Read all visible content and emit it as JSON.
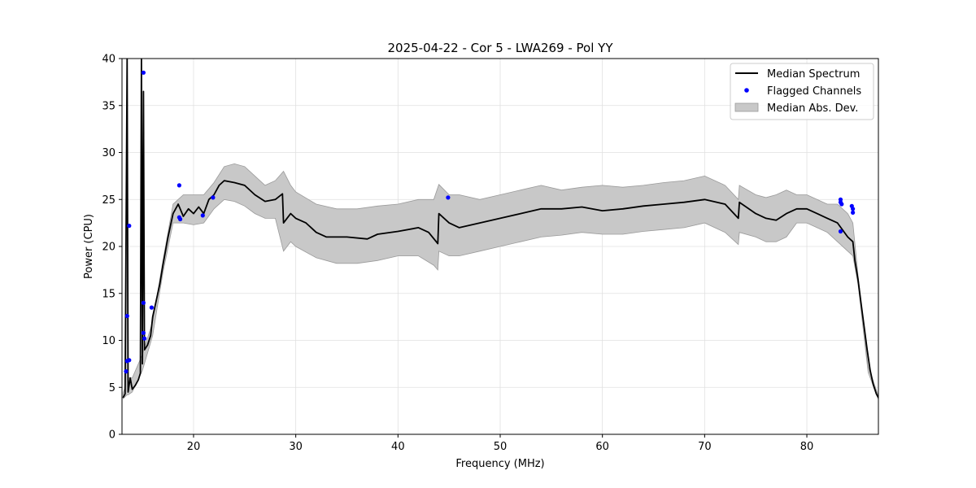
{
  "chart_data": {
    "type": "line",
    "title": "2025-04-22 - Cor 5 - LWA269 - Pol YY",
    "xlabel": "Frequency (MHz)",
    "ylabel": "Power (CPU)",
    "xlim": [
      13,
      87
    ],
    "ylim": [
      0,
      40
    ],
    "x_ticks": [
      20,
      30,
      40,
      50,
      60,
      70,
      80
    ],
    "y_ticks": [
      0,
      5,
      10,
      15,
      20,
      25,
      30,
      35,
      40
    ],
    "grid": true,
    "legend_position": "top-right",
    "colors": {
      "median": "#000000",
      "flagged": "#0000ff",
      "mad_fill": "#c8c8c8",
      "mad_edge": "#9a9a9a"
    },
    "series": [
      {
        "name": "Median Spectrum",
        "kind": "line",
        "points": [
          [
            13.1,
            3.9
          ],
          [
            13.3,
            4.3
          ],
          [
            13.5,
            40
          ],
          [
            13.6,
            4.5
          ],
          [
            13.8,
            6.0
          ],
          [
            14.0,
            4.8
          ],
          [
            14.3,
            5.2
          ],
          [
            14.6,
            5.8
          ],
          [
            14.8,
            6.5
          ],
          [
            14.9,
            40
          ],
          [
            15.0,
            7.5
          ],
          [
            15.1,
            36.5
          ],
          [
            15.2,
            9.0
          ],
          [
            15.5,
            9.5
          ],
          [
            15.8,
            10.5
          ],
          [
            16.0,
            12.5
          ],
          [
            16.3,
            14.0
          ],
          [
            16.7,
            16.0
          ],
          [
            17.0,
            18.0
          ],
          [
            17.5,
            21.0
          ],
          [
            18.0,
            23.5
          ],
          [
            18.5,
            24.5
          ],
          [
            19.0,
            23.2
          ],
          [
            19.5,
            24.0
          ],
          [
            20.0,
            23.5
          ],
          [
            20.5,
            24.2
          ],
          [
            21.0,
            23.5
          ],
          [
            21.5,
            25.0
          ],
          [
            22.0,
            25.5
          ],
          [
            22.5,
            26.5
          ],
          [
            23.0,
            27.0
          ],
          [
            24.0,
            26.8
          ],
          [
            25.0,
            26.5
          ],
          [
            26.0,
            25.5
          ],
          [
            27.0,
            24.8
          ],
          [
            28.0,
            25.0
          ],
          [
            28.7,
            25.6
          ],
          [
            28.8,
            22.5
          ],
          [
            29.5,
            23.5
          ],
          [
            30.0,
            23.0
          ],
          [
            31.0,
            22.5
          ],
          [
            32.0,
            21.5
          ],
          [
            33.0,
            21.0
          ],
          [
            35.0,
            21.0
          ],
          [
            37.0,
            20.8
          ],
          [
            38.0,
            21.3
          ],
          [
            40.0,
            21.6
          ],
          [
            42.0,
            22.0
          ],
          [
            43.0,
            21.5
          ],
          [
            43.9,
            20.3
          ],
          [
            44.0,
            23.5
          ],
          [
            45.0,
            22.5
          ],
          [
            46.0,
            22.0
          ],
          [
            48.0,
            22.5
          ],
          [
            50.0,
            23.0
          ],
          [
            52.0,
            23.5
          ],
          [
            54.0,
            24.0
          ],
          [
            56.0,
            24.0
          ],
          [
            58.0,
            24.2
          ],
          [
            60.0,
            23.8
          ],
          [
            62.0,
            24.0
          ],
          [
            64.0,
            24.3
          ],
          [
            66.0,
            24.5
          ],
          [
            68.0,
            24.7
          ],
          [
            70.0,
            25.0
          ],
          [
            72.0,
            24.5
          ],
          [
            73.3,
            23.0
          ],
          [
            73.4,
            24.7
          ],
          [
            75.0,
            23.5
          ],
          [
            76.0,
            23.0
          ],
          [
            77.0,
            22.8
          ],
          [
            78.0,
            23.5
          ],
          [
            79.0,
            24.0
          ],
          [
            80.0,
            24.0
          ],
          [
            81.0,
            23.5
          ],
          [
            82.0,
            23.0
          ],
          [
            83.0,
            22.5
          ],
          [
            84.0,
            21.0
          ],
          [
            84.5,
            20.5
          ],
          [
            84.7,
            18.5
          ],
          [
            85.0,
            16.5
          ],
          [
            85.3,
            14.0
          ],
          [
            85.6,
            11.5
          ],
          [
            85.9,
            9.0
          ],
          [
            86.2,
            6.8
          ],
          [
            86.5,
            5.3
          ],
          [
            86.8,
            4.3
          ],
          [
            87.0,
            3.9
          ]
        ]
      },
      {
        "name": "Flagged Channels",
        "kind": "scatter",
        "points": [
          [
            13.4,
            6.7
          ],
          [
            13.5,
            7.8
          ],
          [
            13.5,
            12.6
          ],
          [
            13.7,
            22.2
          ],
          [
            13.7,
            7.9
          ],
          [
            15.1,
            38.5
          ],
          [
            15.1,
            14.0
          ],
          [
            15.1,
            10.8
          ],
          [
            15.2,
            10.2
          ],
          [
            15.9,
            13.5
          ],
          [
            18.6,
            26.5
          ],
          [
            18.6,
            23.1
          ],
          [
            18.7,
            22.9
          ],
          [
            20.9,
            23.3
          ],
          [
            21.9,
            25.2
          ],
          [
            44.9,
            25.2
          ],
          [
            83.3,
            25.0
          ],
          [
            83.3,
            24.7
          ],
          [
            83.4,
            24.5
          ],
          [
            83.3,
            21.6
          ],
          [
            84.4,
            24.3
          ],
          [
            84.5,
            24.0
          ],
          [
            84.5,
            23.6
          ]
        ]
      },
      {
        "name": "Median Abs. Dev.",
        "kind": "band",
        "upper": [
          [
            13.1,
            4.4
          ],
          [
            13.3,
            5.0
          ],
          [
            13.5,
            34.0
          ],
          [
            13.6,
            6.0
          ],
          [
            14.0,
            6.0
          ],
          [
            15.0,
            8.5
          ],
          [
            16.0,
            12.0
          ],
          [
            17.0,
            18.5
          ],
          [
            18.0,
            24.5
          ],
          [
            19.0,
            25.5
          ],
          [
            20.0,
            25.5
          ],
          [
            21.0,
            25.5
          ],
          [
            22.0,
            26.8
          ],
          [
            23.0,
            28.5
          ],
          [
            24.0,
            28.8
          ],
          [
            25.0,
            28.5
          ],
          [
            26.0,
            27.5
          ],
          [
            27.0,
            26.5
          ],
          [
            28.0,
            27.0
          ],
          [
            28.8,
            28.0
          ],
          [
            29.5,
            26.5
          ],
          [
            30.0,
            25.8
          ],
          [
            32.0,
            24.5
          ],
          [
            34.0,
            24.0
          ],
          [
            36.0,
            24.0
          ],
          [
            38.0,
            24.3
          ],
          [
            40.0,
            24.5
          ],
          [
            42.0,
            25.0
          ],
          [
            43.5,
            25.0
          ],
          [
            44.0,
            26.6
          ],
          [
            45.0,
            25.5
          ],
          [
            46.0,
            25.5
          ],
          [
            48.0,
            25.0
          ],
          [
            50.0,
            25.5
          ],
          [
            52.0,
            26.0
          ],
          [
            54.0,
            26.5
          ],
          [
            56.0,
            26.0
          ],
          [
            58.0,
            26.3
          ],
          [
            60.0,
            26.5
          ],
          [
            62.0,
            26.3
          ],
          [
            64.0,
            26.5
          ],
          [
            66.0,
            26.8
          ],
          [
            68.0,
            27.0
          ],
          [
            70.0,
            27.5
          ],
          [
            72.0,
            26.5
          ],
          [
            73.3,
            25.0
          ],
          [
            73.4,
            26.5
          ],
          [
            75.0,
            25.5
          ],
          [
            76.0,
            25.2
          ],
          [
            77.0,
            25.5
          ],
          [
            78.0,
            26.0
          ],
          [
            79.0,
            25.5
          ],
          [
            80.0,
            25.5
          ],
          [
            81.0,
            25.0
          ],
          [
            82.0,
            24.5
          ],
          [
            83.0,
            24.5
          ],
          [
            84.0,
            23.5
          ],
          [
            84.5,
            22.5
          ],
          [
            85.0,
            17.0
          ],
          [
            86.0,
            7.2
          ],
          [
            87.0,
            4.1
          ]
        ],
        "lower": [
          [
            13.1,
            3.8
          ],
          [
            13.3,
            4.0
          ],
          [
            13.5,
            4.2
          ],
          [
            13.6,
            4.2
          ],
          [
            14.0,
            4.5
          ],
          [
            15.0,
            6.8
          ],
          [
            16.0,
            10.5
          ],
          [
            17.0,
            17.2
          ],
          [
            18.0,
            22.5
          ],
          [
            19.0,
            22.5
          ],
          [
            20.0,
            22.3
          ],
          [
            21.0,
            22.5
          ],
          [
            22.0,
            24.0
          ],
          [
            23.0,
            25.0
          ],
          [
            24.0,
            24.8
          ],
          [
            25.0,
            24.3
          ],
          [
            26.0,
            23.5
          ],
          [
            27.0,
            23.0
          ],
          [
            28.0,
            23.0
          ],
          [
            28.8,
            19.5
          ],
          [
            29.5,
            20.5
          ],
          [
            30.0,
            20.0
          ],
          [
            32.0,
            18.8
          ],
          [
            34.0,
            18.2
          ],
          [
            36.0,
            18.2
          ],
          [
            38.0,
            18.5
          ],
          [
            40.0,
            19.0
          ],
          [
            42.0,
            19.0
          ],
          [
            43.5,
            18.0
          ],
          [
            43.9,
            17.5
          ],
          [
            44.0,
            19.5
          ],
          [
            45.0,
            19.0
          ],
          [
            46.0,
            19.0
          ],
          [
            48.0,
            19.5
          ],
          [
            50.0,
            20.0
          ],
          [
            52.0,
            20.5
          ],
          [
            54.0,
            21.0
          ],
          [
            56.0,
            21.2
          ],
          [
            58.0,
            21.5
          ],
          [
            60.0,
            21.3
          ],
          [
            62.0,
            21.3
          ],
          [
            64.0,
            21.6
          ],
          [
            66.0,
            21.8
          ],
          [
            68.0,
            22.0
          ],
          [
            70.0,
            22.5
          ],
          [
            72.0,
            21.5
          ],
          [
            73.3,
            20.2
          ],
          [
            73.4,
            21.5
          ],
          [
            75.0,
            21.0
          ],
          [
            76.0,
            20.5
          ],
          [
            77.0,
            20.5
          ],
          [
            78.0,
            21.0
          ],
          [
            79.0,
            22.5
          ],
          [
            80.0,
            22.5
          ],
          [
            81.0,
            22.0
          ],
          [
            82.0,
            21.5
          ],
          [
            83.0,
            20.5
          ],
          [
            84.0,
            19.5
          ],
          [
            84.5,
            19.0
          ],
          [
            85.0,
            16.0
          ],
          [
            86.0,
            6.6
          ],
          [
            87.0,
            3.7
          ]
        ]
      }
    ]
  }
}
